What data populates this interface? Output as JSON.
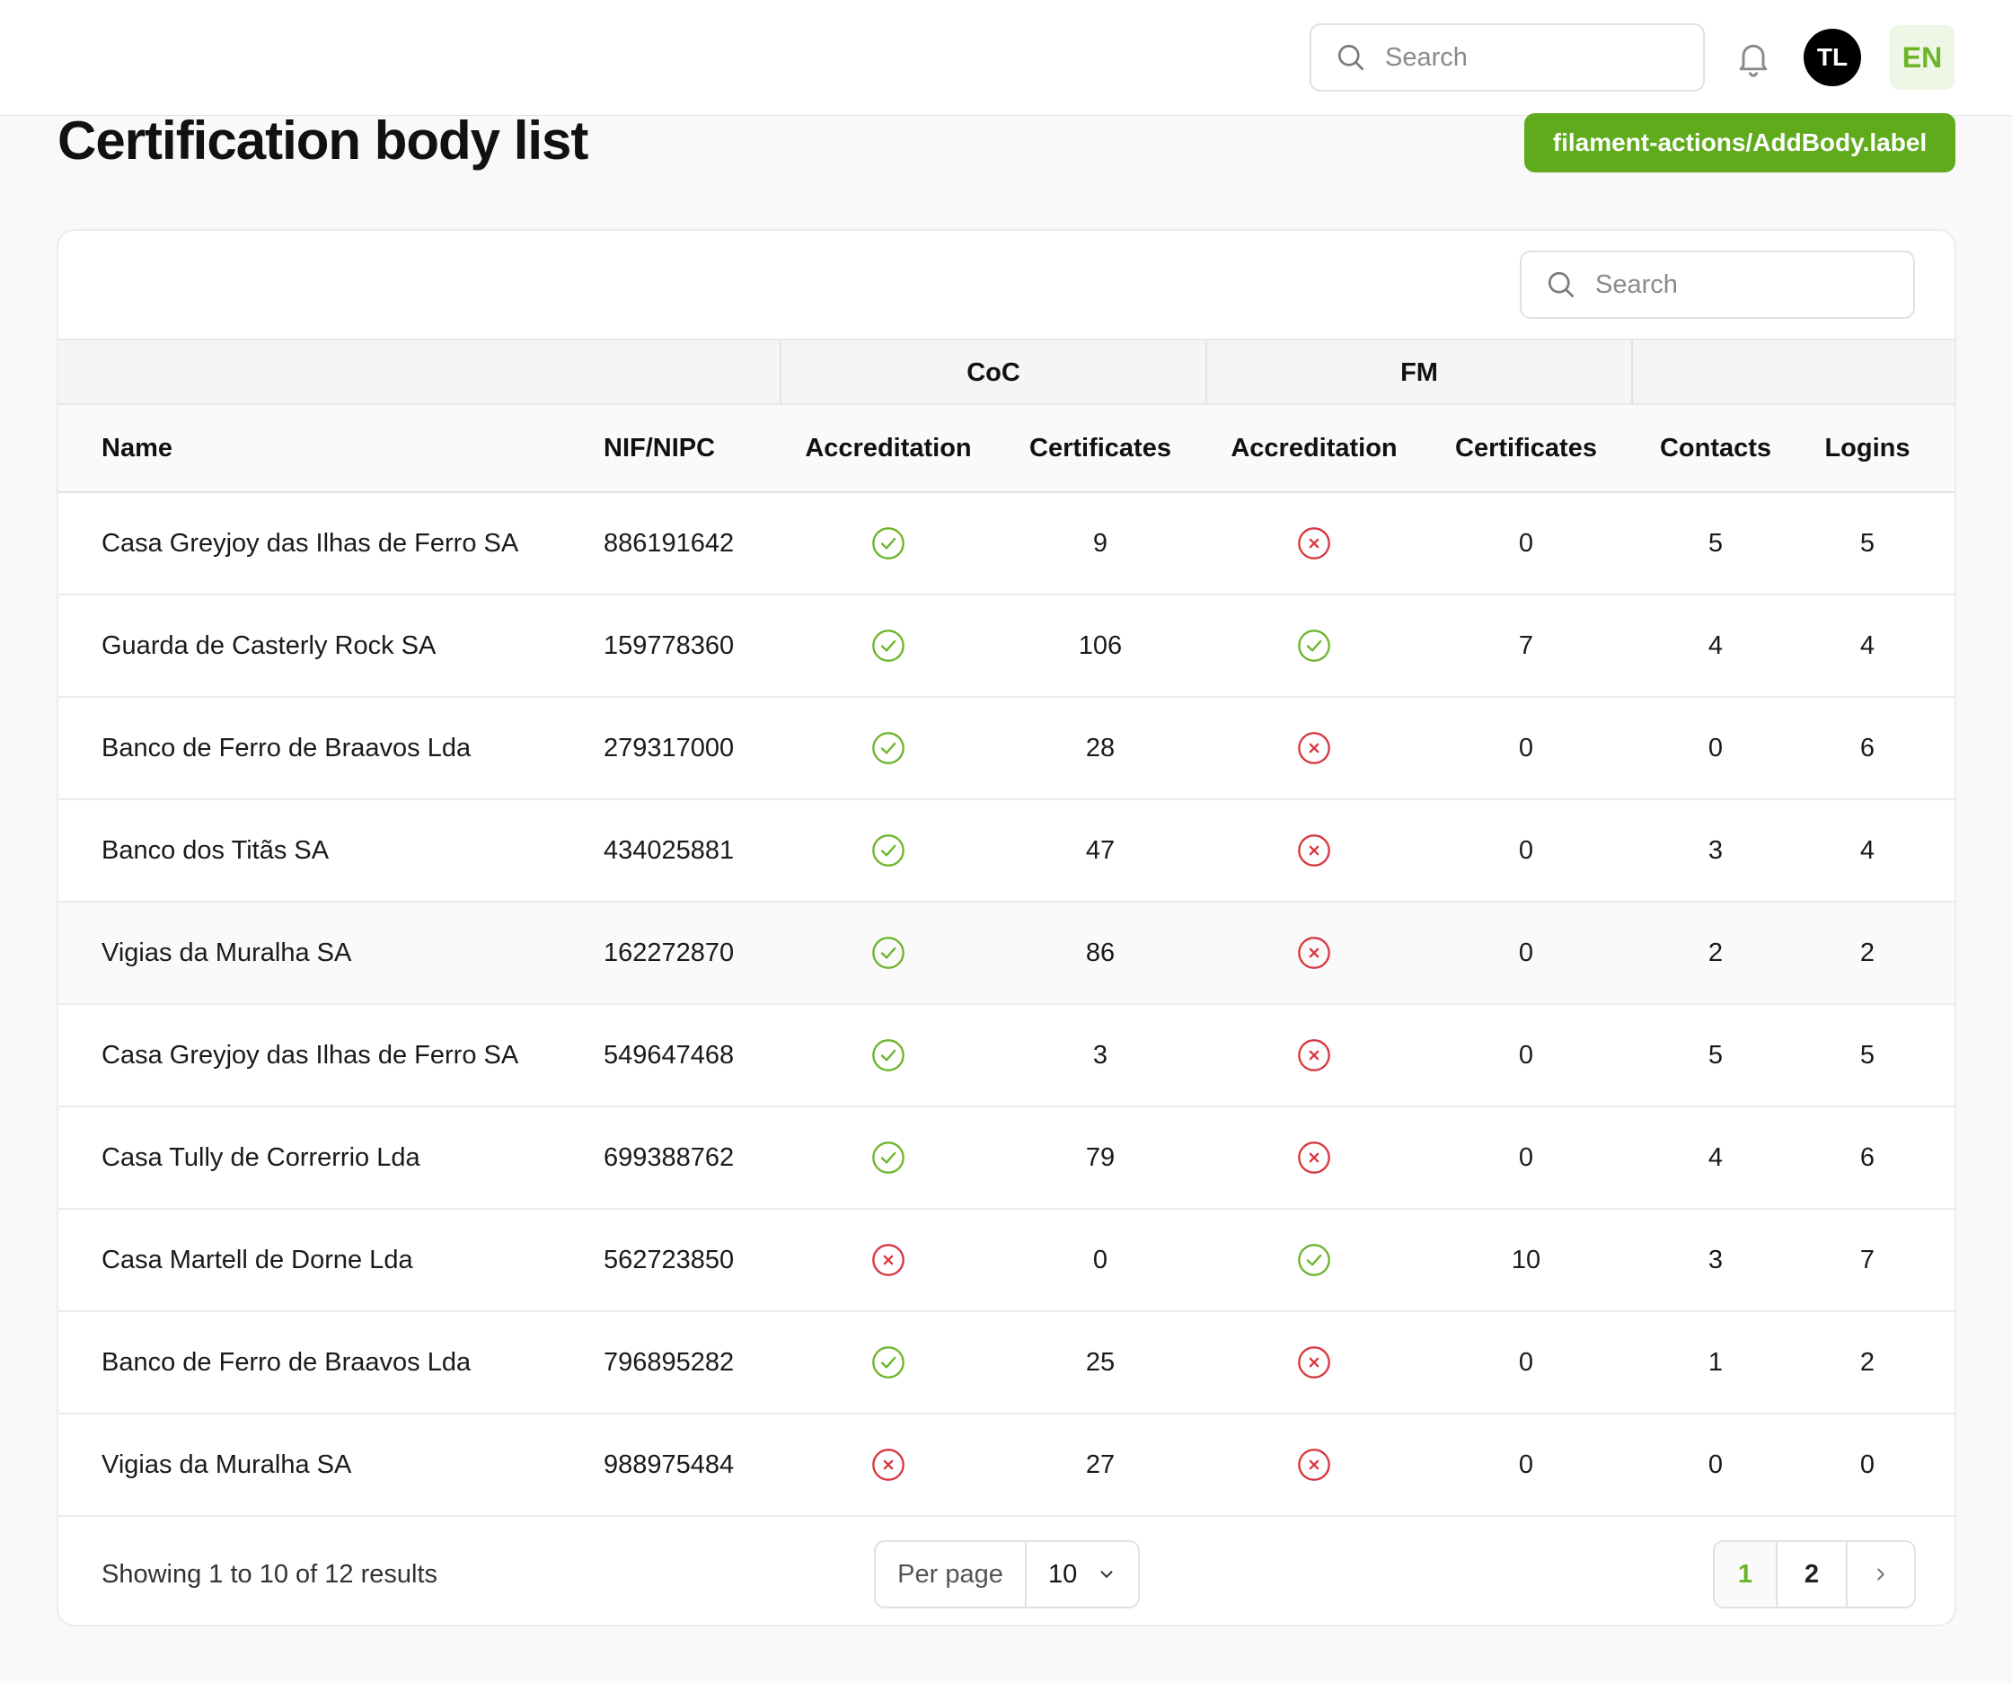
{
  "topbar": {
    "search_placeholder": "Search",
    "avatar_initials": "TL",
    "language": "EN"
  },
  "page": {
    "title": "Certification body list",
    "add_button_label": "filament-actions/AddBody.label"
  },
  "table": {
    "search_placeholder": "Search",
    "groups": {
      "coc": "CoC",
      "fm": "FM"
    },
    "columns": {
      "name": "Name",
      "nif": "NIF/NIPC",
      "coc_accreditation": "Accreditation",
      "coc_certificates": "Certificates",
      "fm_accreditation": "Accreditation",
      "fm_certificates": "Certificates",
      "contacts": "Contacts",
      "logins": "Logins"
    },
    "rows": [
      {
        "name": "Casa Greyjoy das Ilhas de Ferro SA",
        "nif": "886191642",
        "coc_acc": true,
        "coc_cert": "9",
        "fm_acc": false,
        "fm_cert": "0",
        "contacts": "5",
        "logins": "5"
      },
      {
        "name": "Guarda de Casterly Rock SA",
        "nif": "159778360",
        "coc_acc": true,
        "coc_cert": "106",
        "fm_acc": true,
        "fm_cert": "7",
        "contacts": "4",
        "logins": "4"
      },
      {
        "name": "Banco de Ferro de Braavos Lda",
        "nif": "279317000",
        "coc_acc": true,
        "coc_cert": "28",
        "fm_acc": false,
        "fm_cert": "0",
        "contacts": "0",
        "logins": "6"
      },
      {
        "name": "Banco dos Titãs SA",
        "nif": "434025881",
        "coc_acc": true,
        "coc_cert": "47",
        "fm_acc": false,
        "fm_cert": "0",
        "contacts": "3",
        "logins": "4"
      },
      {
        "name": "Vigias da Muralha SA",
        "nif": "162272870",
        "coc_acc": true,
        "coc_cert": "86",
        "fm_acc": false,
        "fm_cert": "0",
        "contacts": "2",
        "logins": "2"
      },
      {
        "name": "Casa Greyjoy das Ilhas de Ferro SA",
        "nif": "549647468",
        "coc_acc": true,
        "coc_cert": "3",
        "fm_acc": false,
        "fm_cert": "0",
        "contacts": "5",
        "logins": "5"
      },
      {
        "name": "Casa Tully de Correrrio Lda",
        "nif": "699388762",
        "coc_acc": true,
        "coc_cert": "79",
        "fm_acc": false,
        "fm_cert": "0",
        "contacts": "4",
        "logins": "6"
      },
      {
        "name": "Casa Martell de Dorne Lda",
        "nif": "562723850",
        "coc_acc": false,
        "coc_cert": "0",
        "fm_acc": true,
        "fm_cert": "10",
        "contacts": "3",
        "logins": "7"
      },
      {
        "name": "Banco de Ferro de Braavos Lda",
        "nif": "796895282",
        "coc_acc": true,
        "coc_cert": "25",
        "fm_acc": false,
        "fm_cert": "0",
        "contacts": "1",
        "logins": "2"
      },
      {
        "name": "Vigias da Muralha SA",
        "nif": "988975484",
        "coc_acc": false,
        "coc_cert": "27",
        "fm_acc": false,
        "fm_cert": "0",
        "contacts": "0",
        "logins": "0"
      }
    ]
  },
  "footer": {
    "summary": "Showing 1 to 10 of 12 results",
    "per_page_label": "Per page",
    "per_page_value": "10",
    "pages": [
      "1",
      "2"
    ]
  },
  "colors": {
    "accent": "#5fab1c",
    "check": "#6cb52a",
    "cross": "#d9363e"
  }
}
